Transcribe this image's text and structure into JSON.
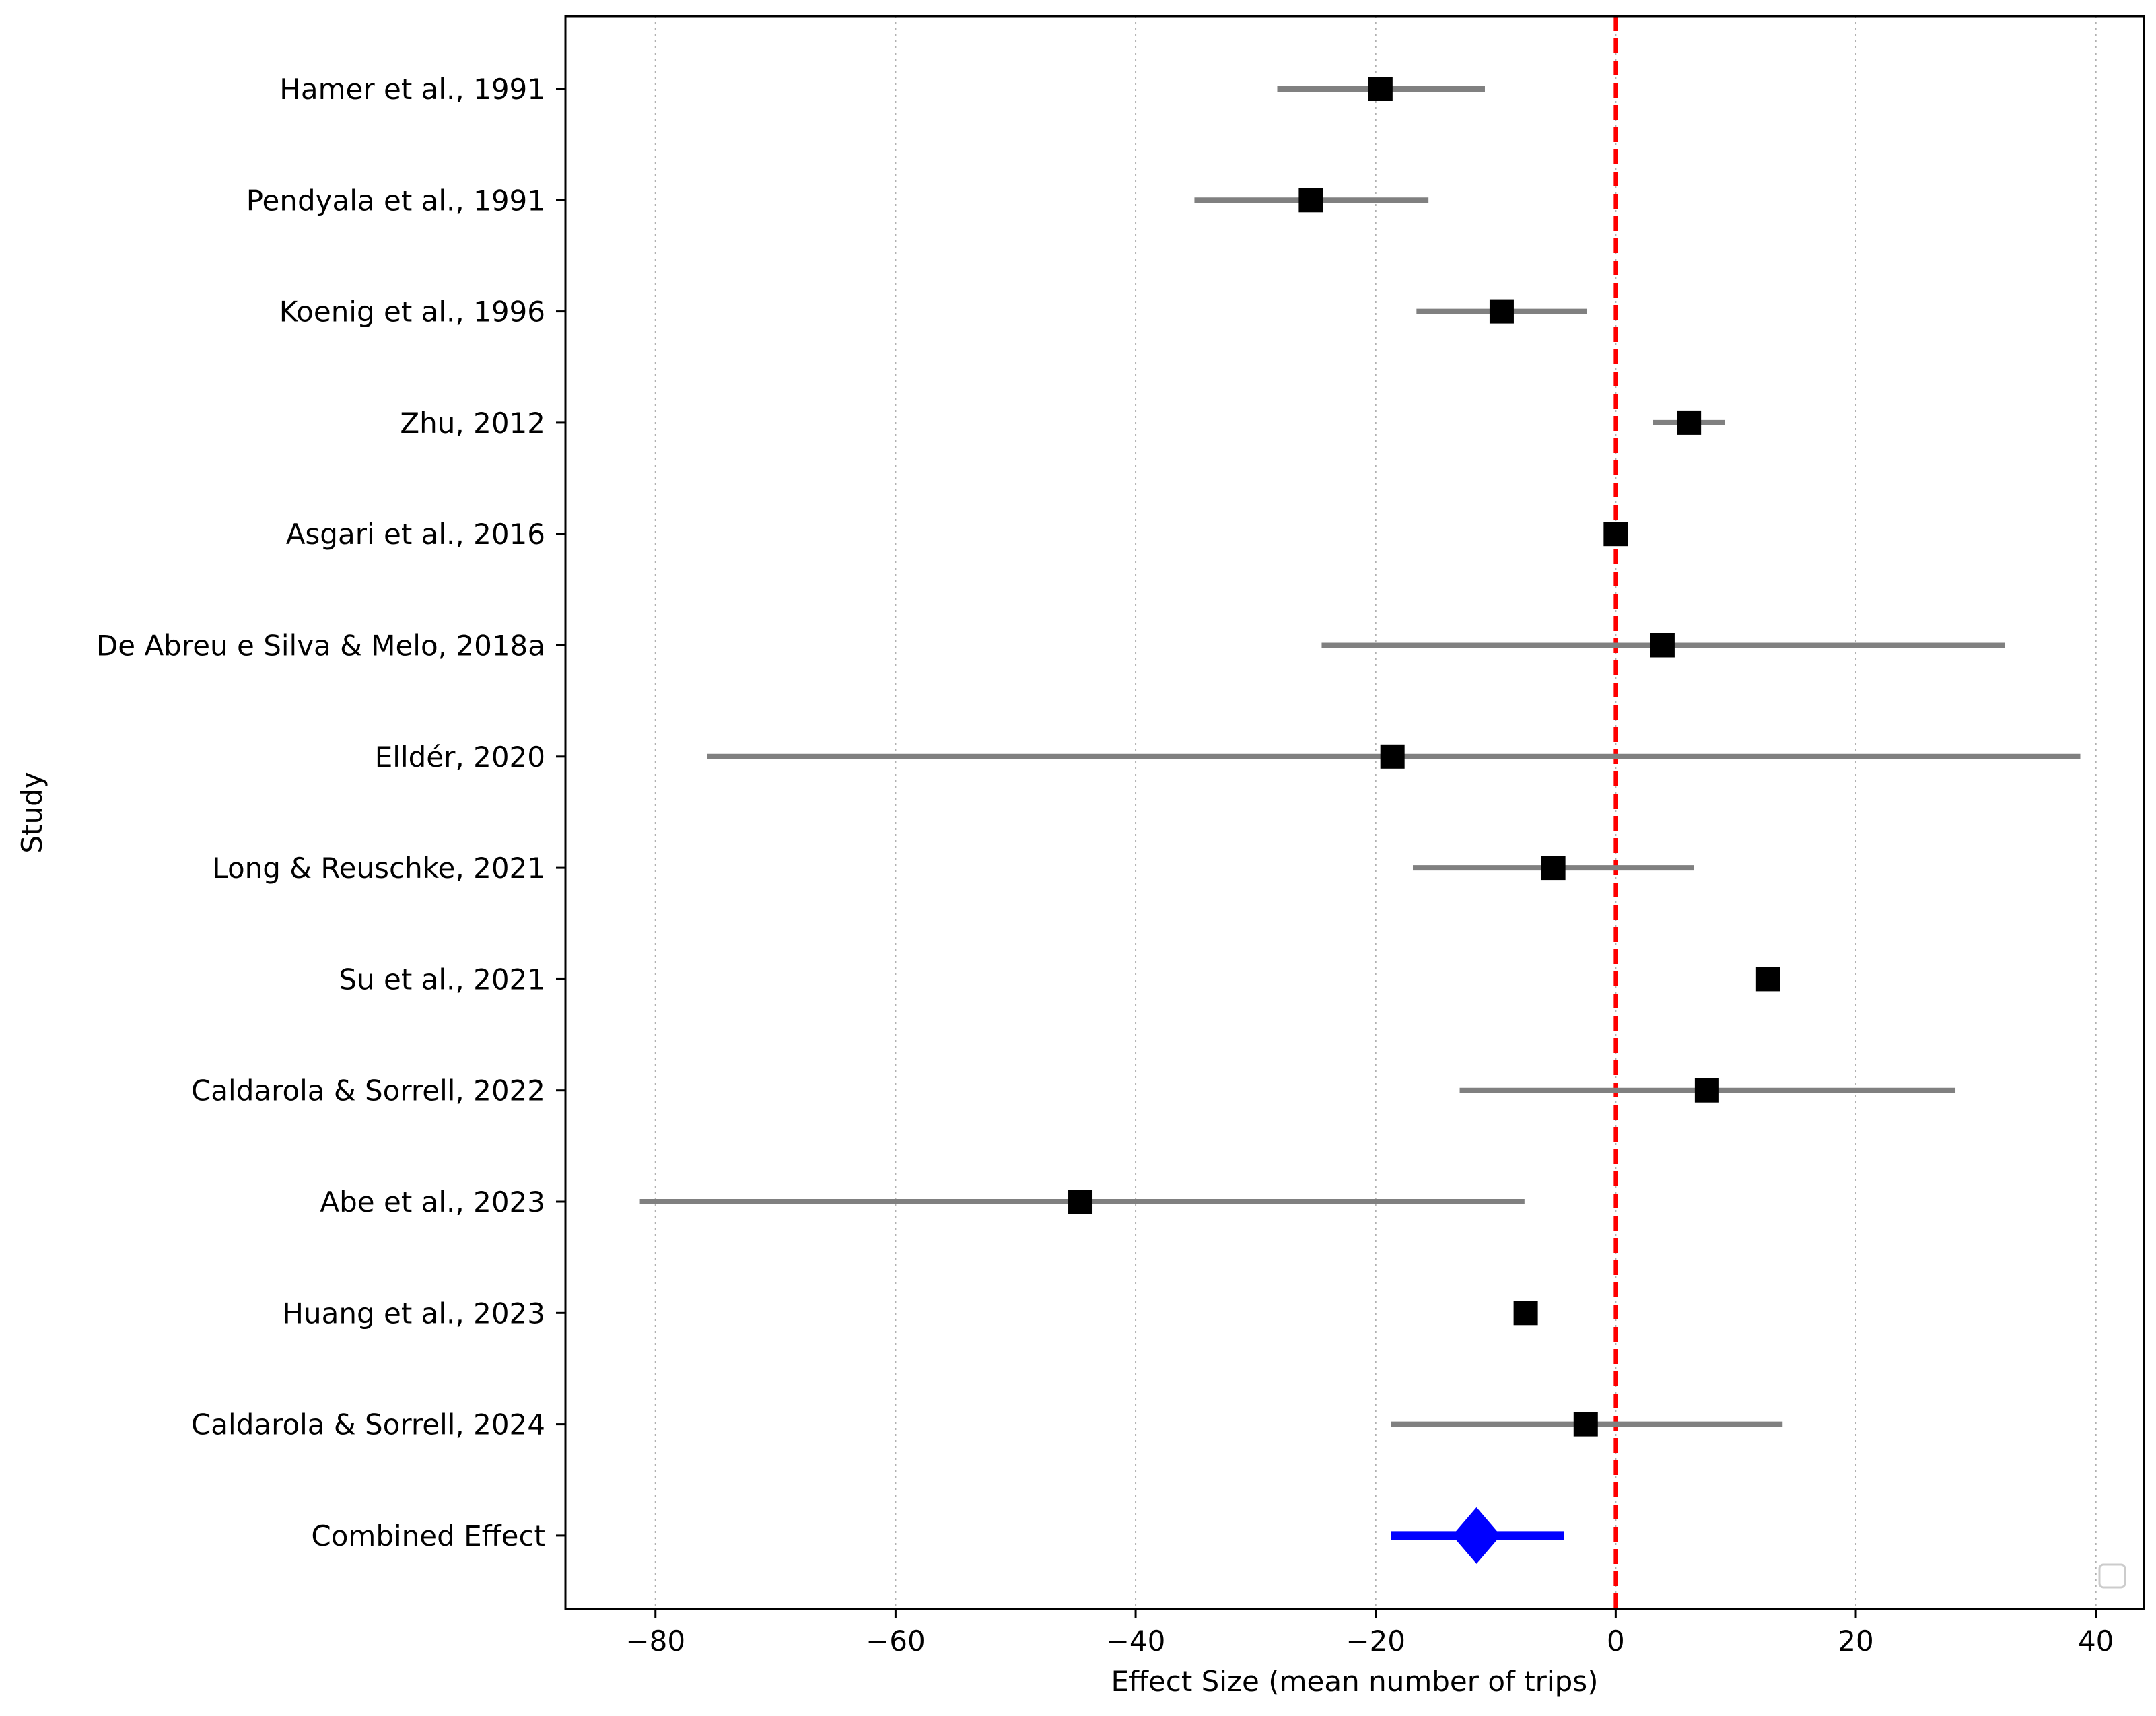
{
  "chart_data": {
    "type": "forest",
    "xlabel": "Effect Size (mean number of trips)",
    "ylabel": "Study",
    "xlim": [
      -87.5,
      44
    ],
    "xticks": [
      -80,
      -60,
      -40,
      -20,
      0,
      20,
      40
    ],
    "xtick_labels": [
      "−80",
      "−60",
      "−40",
      "−20",
      "0",
      "20",
      "40"
    ],
    "grid": "vertical dotted",
    "reference_line": 0,
    "legend": "bottom-right (empty)",
    "studies": [
      {
        "label": "Hamer et al., 1991",
        "effect": -19.6,
        "ci_low": -28.2,
        "ci_high": -10.9
      },
      {
        "label": "Pendyala et al., 1991",
        "effect": -25.4,
        "ci_low": -35.1,
        "ci_high": -15.6
      },
      {
        "label": "Koenig et al., 1996",
        "effect": -9.5,
        "ci_low": -16.6,
        "ci_high": -2.4
      },
      {
        "label": "Zhu, 2012",
        "effect": 6.1,
        "ci_low": 3.1,
        "ci_high": 9.1
      },
      {
        "label": "Asgari et al., 2016",
        "effect": 0.0,
        "ci_low": 0.0,
        "ci_high": 0.0
      },
      {
        "label": "De Abreu e Silva & Melo, 2018a",
        "effect": 3.9,
        "ci_low": -24.5,
        "ci_high": 32.4
      },
      {
        "label": "Elldér, 2020",
        "effect": -18.6,
        "ci_low": -75.7,
        "ci_high": 38.7
      },
      {
        "label": "Long & Reuschke, 2021",
        "effect": -5.2,
        "ci_low": -16.9,
        "ci_high": 6.5
      },
      {
        "label": "Su et al., 2021",
        "effect": 12.7,
        "ci_low": 12.7,
        "ci_high": 12.7
      },
      {
        "label": "Caldarola & Sorrell, 2022",
        "effect": 7.6,
        "ci_low": -13.0,
        "ci_high": 28.3
      },
      {
        "label": "Abe et al., 2023",
        "effect": -44.6,
        "ci_low": -81.3,
        "ci_high": -7.6
      },
      {
        "label": "Huang et al., 2023",
        "effect": -7.5,
        "ci_low": -7.5,
        "ci_high": -7.5
      },
      {
        "label": "Caldarola & Sorrell, 2024",
        "effect": -2.5,
        "ci_low": -18.7,
        "ci_high": 13.9
      }
    ],
    "combined": {
      "label": "Combined Effect",
      "effect": -11.6,
      "ci_low": -18.7,
      "ci_high": -4.3
    }
  },
  "colors": {
    "study_marker": "#000000",
    "ci_line": "#808080",
    "combined": "#0000ff",
    "reference_line": "#ff0000",
    "grid": "#b0b0b0"
  }
}
